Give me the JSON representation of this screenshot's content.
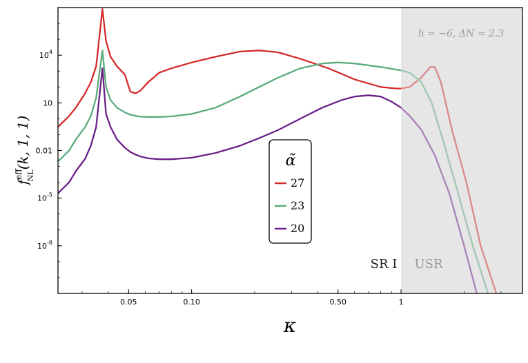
{
  "chart_data": {
    "type": "line",
    "xlabel": "κ",
    "ylabel": "f_NL^eff(k, 1, 1)",
    "x_scale": "log",
    "y_scale": "log",
    "xlim": [
      0.023,
      3.8
    ],
    "ylim": [
      1e-11,
      10000000.0
    ],
    "xticks": [
      0.05,
      0.1,
      0.5,
      1
    ],
    "xtick_labels": [
      "0.05",
      "0.10",
      "0.50",
      "1"
    ],
    "yticks": [
      10000.0,
      10,
      0.01,
      1e-05,
      1e-08
    ],
    "ytick_labels": [
      [
        "10",
        "4"
      ],
      [
        "10",
        ""
      ],
      [
        "0.01",
        ""
      ],
      [
        "10",
        "-5"
      ],
      [
        "10",
        "-8"
      ]
    ],
    "annotation": "h = −6,  ΔN = 2.3",
    "region_labels": [
      "SR I",
      "USR"
    ],
    "shaded_region": [
      1,
      3.8
    ],
    "legend": {
      "title": "α̃",
      "placement": "center"
    },
    "series": [
      {
        "name": "27",
        "color": "#d42a2a",
        "x": [
          0.023,
          0.026,
          0.028,
          0.031,
          0.033,
          0.035,
          0.0375,
          0.039,
          0.041,
          0.044,
          0.048,
          0.051,
          0.054,
          0.057,
          0.062,
          0.07,
          0.08,
          0.1,
          0.13,
          0.17,
          0.21,
          0.26,
          0.33,
          0.45,
          0.6,
          0.8,
          0.95,
          1.0,
          1.1,
          1.25,
          1.38,
          1.45,
          1.55,
          1.75,
          2.05,
          2.4,
          2.85,
          3.2
        ],
        "y": [
          0.3,
          1.5,
          5,
          40,
          200,
          2000,
          8000000,
          80000,
          8000,
          2000,
          600,
          50,
          40,
          60,
          200,
          800,
          1500,
          3500,
          8000,
          17000,
          20000,
          15000,
          6000,
          1500,
          300,
          100,
          80,
          80,
          100,
          400,
          1800,
          1800,
          200,
          0.2,
          0.0001,
          1e-08,
          1e-11,
          1e-14
        ]
      },
      {
        "name": "23",
        "color": "#5aaa7c",
        "x": [
          0.023,
          0.026,
          0.028,
          0.031,
          0.033,
          0.035,
          0.0375,
          0.039,
          0.041,
          0.044,
          0.048,
          0.051,
          0.054,
          0.057,
          0.062,
          0.07,
          0.08,
          0.1,
          0.13,
          0.17,
          0.21,
          0.26,
          0.33,
          0.42,
          0.5,
          0.6,
          0.8,
          1.0,
          1.1,
          1.25,
          1.4,
          1.6,
          1.9,
          2.2,
          2.6,
          3.0
        ],
        "y": [
          0.002,
          0.01,
          0.05,
          0.3,
          1.5,
          20,
          20000,
          100,
          15,
          5,
          2.5,
          1.8,
          1.5,
          1.35,
          1.3,
          1.3,
          1.4,
          2,
          5,
          25,
          100,
          400,
          1500,
          3000,
          3500,
          3000,
          1800,
          1100,
          800,
          200,
          10,
          0.03,
          1e-05,
          1e-08,
          1e-11,
          1e-14
        ]
      },
      {
        "name": "20",
        "color": "#6b1f88",
        "x": [
          0.023,
          0.026,
          0.028,
          0.031,
          0.033,
          0.035,
          0.0375,
          0.039,
          0.041,
          0.044,
          0.048,
          0.051,
          0.054,
          0.057,
          0.062,
          0.07,
          0.08,
          0.1,
          0.13,
          0.17,
          0.21,
          0.26,
          0.33,
          0.42,
          0.52,
          0.6,
          0.7,
          0.8,
          0.9,
          1.0,
          1.1,
          1.25,
          1.45,
          1.7,
          2.0,
          2.3,
          2.7
        ],
        "y": [
          2e-05,
          0.0001,
          0.0005,
          0.003,
          0.02,
          0.3,
          1500,
          2,
          0.3,
          0.05,
          0.015,
          0.008,
          0.0055,
          0.0042,
          0.0032,
          0.0028,
          0.0028,
          0.0035,
          0.007,
          0.02,
          0.06,
          0.2,
          1,
          5,
          15,
          25,
          30,
          25,
          12,
          5,
          1.5,
          0.2,
          0.005,
          2e-05,
          1e-08,
          1e-11,
          1e-14
        ]
      }
    ]
  }
}
